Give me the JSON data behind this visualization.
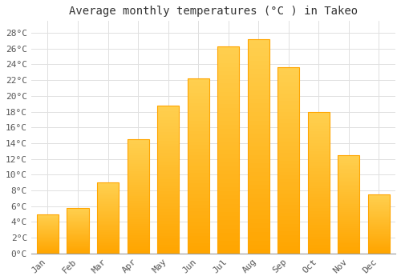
{
  "title": "Average monthly temperatures (°C ) in Takeo",
  "months": [
    "Jan",
    "Feb",
    "Mar",
    "Apr",
    "May",
    "Jun",
    "Jul",
    "Aug",
    "Sep",
    "Oct",
    "Nov",
    "Dec"
  ],
  "values": [
    5.0,
    5.8,
    9.0,
    14.5,
    18.8,
    22.2,
    26.3,
    27.2,
    23.6,
    18.0,
    12.5,
    7.5
  ],
  "bar_color_main": "#FFC020",
  "bar_color_light": "#FFE080",
  "bar_color_edge": "#FFA500",
  "ylim": [
    0,
    29.5
  ],
  "yticks": [
    0,
    2,
    4,
    6,
    8,
    10,
    12,
    14,
    16,
    18,
    20,
    22,
    24,
    26,
    28
  ],
  "ytick_labels": [
    "0°C",
    "2°C",
    "4°C",
    "6°C",
    "8°C",
    "10°C",
    "12°C",
    "14°C",
    "16°C",
    "18°C",
    "20°C",
    "22°C",
    "24°C",
    "26°C",
    "28°C"
  ],
  "background_color": "#FFFFFF",
  "grid_color": "#E0E0E0",
  "title_fontsize": 10,
  "tick_fontsize": 8,
  "font_family": "monospace"
}
